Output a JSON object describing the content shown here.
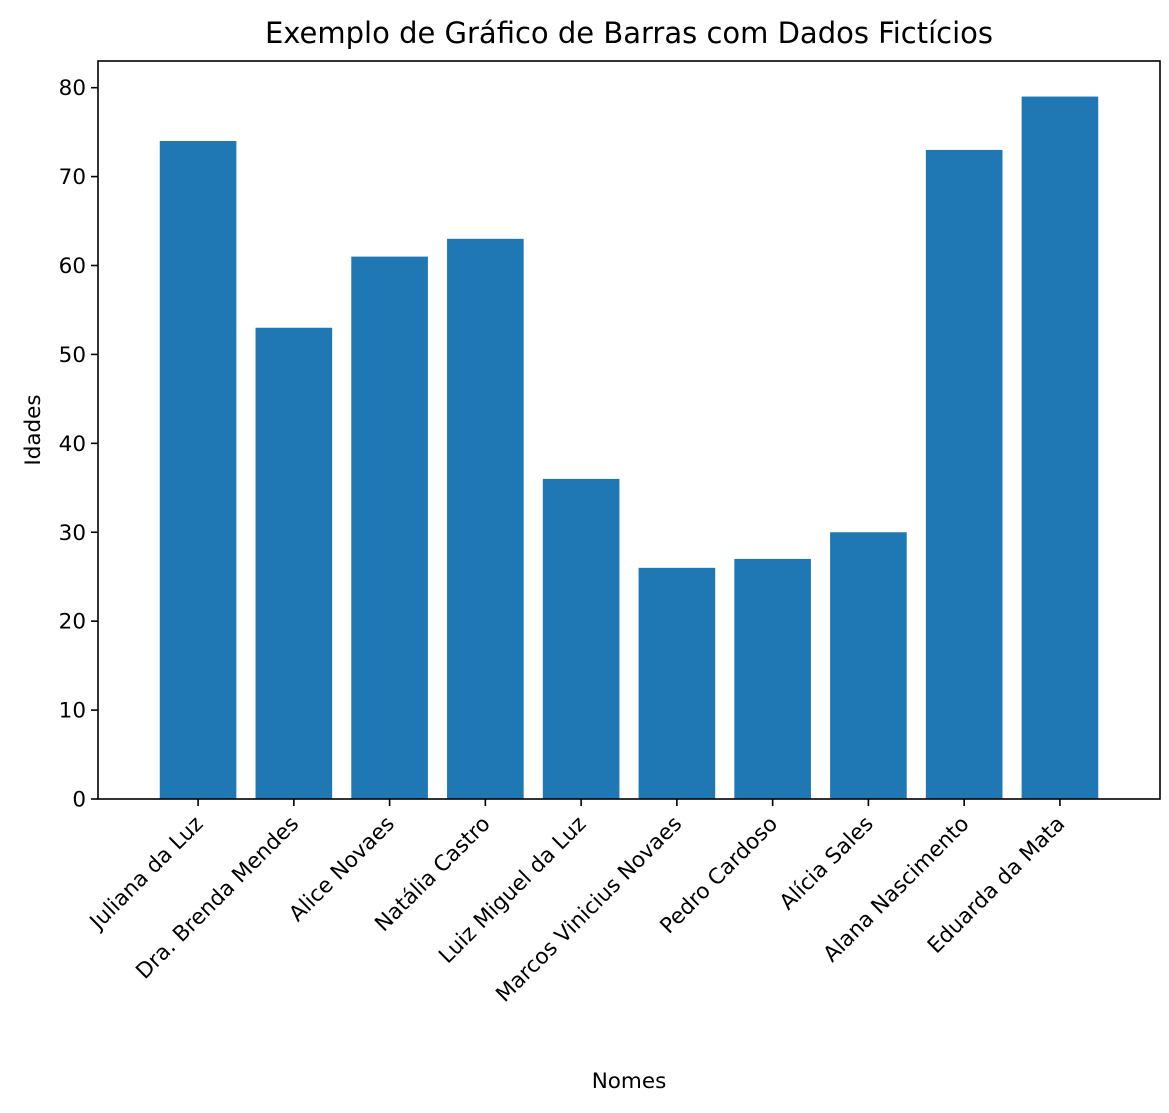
{
  "chart_data": {
    "type": "bar",
    "title": "Exemplo de Gráfico de Barras com Dados Fictícios",
    "xlabel": "Nomes",
    "ylabel": "Idades",
    "categories": [
      "Juliana da Luz",
      "Dra. Brenda Mendes",
      "Alice Novaes",
      "Natália Castro",
      "Luiz Miguel da Luz",
      "Marcos Vinicius Novaes",
      "Pedro Cardoso",
      "Alícia Sales",
      "Alana Nascimento",
      "Eduarda da Mata"
    ],
    "values": [
      74,
      53,
      61,
      63,
      36,
      26,
      27,
      30,
      73,
      79
    ],
    "ylim": [
      0,
      83
    ],
    "yticks": [
      0,
      10,
      20,
      30,
      40,
      50,
      60,
      70,
      80
    ],
    "bar_color": "#1f77b4",
    "grid": false,
    "legend": "none"
  }
}
